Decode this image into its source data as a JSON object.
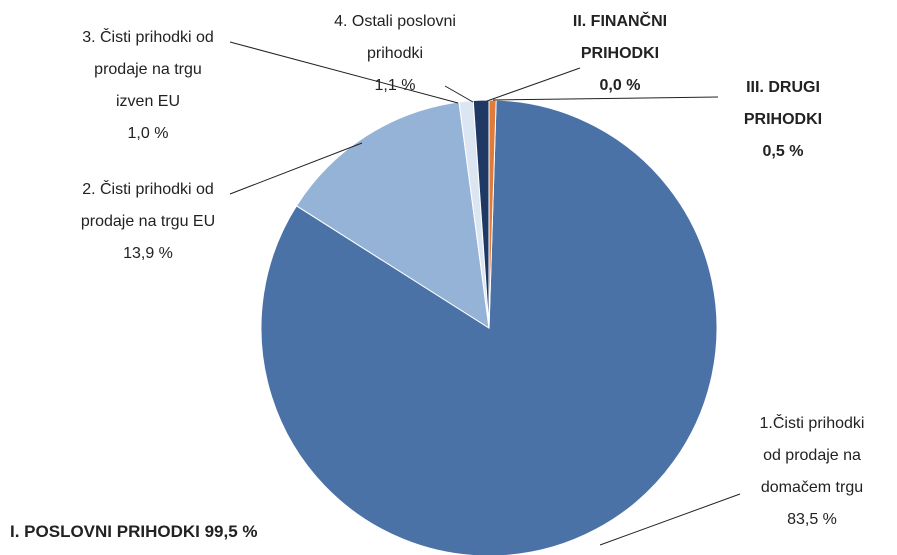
{
  "chart_data": {
    "type": "pie",
    "categories": [
      "1.Čisti prihodki od prodaje na domačem trgu",
      "2. Čisti prihodki od prodaje na trgu EU",
      "3. Čisti prihodki od prodaje na trgu izven EU",
      "4. Ostali poslovni prihodki",
      "II. FINANČNI PRIHODKI",
      "III. DRUGI PRIHODKI"
    ],
    "values": [
      83.5,
      13.9,
      1.0,
      1.1,
      0.0,
      0.5
    ],
    "value_labels": [
      "83,5 %",
      "13,9 %",
      "1,0 %",
      "1,1 %",
      "0,0 %",
      "0,5 %"
    ],
    "colors": [
      "#4a72a7",
      "#95b3d7",
      "#dce6f2",
      "#1f3864",
      "#c0504d",
      "#e07b39"
    ],
    "annotation": "I. POSLOVNI PRIHODKI 99,5 %"
  }
}
